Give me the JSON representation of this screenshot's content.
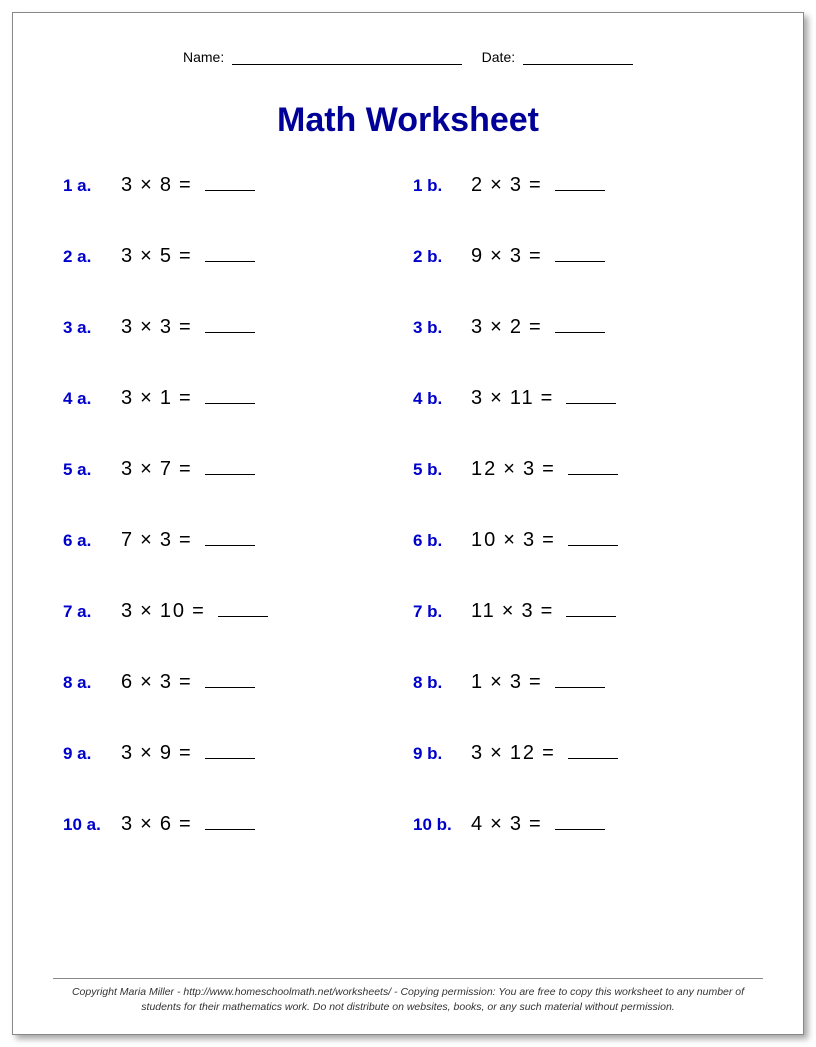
{
  "header": {
    "name_label": "Name:",
    "date_label": "Date:"
  },
  "title": "Math Worksheet",
  "colors": {
    "title_color": "#000099",
    "label_color": "#0000cc",
    "text_color": "#000000",
    "border_color": "#888888",
    "background": "#ffffff"
  },
  "typography": {
    "title_fontsize": 34,
    "label_fontsize": 17,
    "expr_fontsize": 20,
    "footer_fontsize": 10.5
  },
  "multiply_symbol": "×",
  "equals_symbol": "=",
  "problems": [
    {
      "label": "1 a.",
      "a": "3",
      "b": "8"
    },
    {
      "label": "1 b.",
      "a": "2",
      "b": "3"
    },
    {
      "label": "2 a.",
      "a": "3",
      "b": "5"
    },
    {
      "label": "2 b.",
      "a": "9",
      "b": "3"
    },
    {
      "label": "3 a.",
      "a": "3",
      "b": "3"
    },
    {
      "label": "3 b.",
      "a": "3",
      "b": "2"
    },
    {
      "label": "4 a.",
      "a": "3",
      "b": "1"
    },
    {
      "label": "4 b.",
      "a": "3",
      "b": "11"
    },
    {
      "label": "5 a.",
      "a": "3",
      "b": "7"
    },
    {
      "label": "5 b.",
      "a": "12",
      "b": "3"
    },
    {
      "label": "6 a.",
      "a": "7",
      "b": "3"
    },
    {
      "label": "6 b.",
      "a": "10",
      "b": "3"
    },
    {
      "label": "7 a.",
      "a": "3",
      "b": "10"
    },
    {
      "label": "7 b.",
      "a": "11",
      "b": "3"
    },
    {
      "label": "8 a.",
      "a": "6",
      "b": "3"
    },
    {
      "label": "8 b.",
      "a": "1",
      "b": "3"
    },
    {
      "label": "9 a.",
      "a": "3",
      "b": "9"
    },
    {
      "label": "9 b.",
      "a": "3",
      "b": "12"
    },
    {
      "label": "10 a.",
      "a": "3",
      "b": "6"
    },
    {
      "label": "10 b.",
      "a": "4",
      "b": "3"
    }
  ],
  "footer": "Copyright Maria Miller - http://www.homeschoolmath.net/worksheets/ - Copying permission: You are free to copy this worksheet to any number of students for their mathematics work. Do not distribute on websites, books, or any such material without permission."
}
